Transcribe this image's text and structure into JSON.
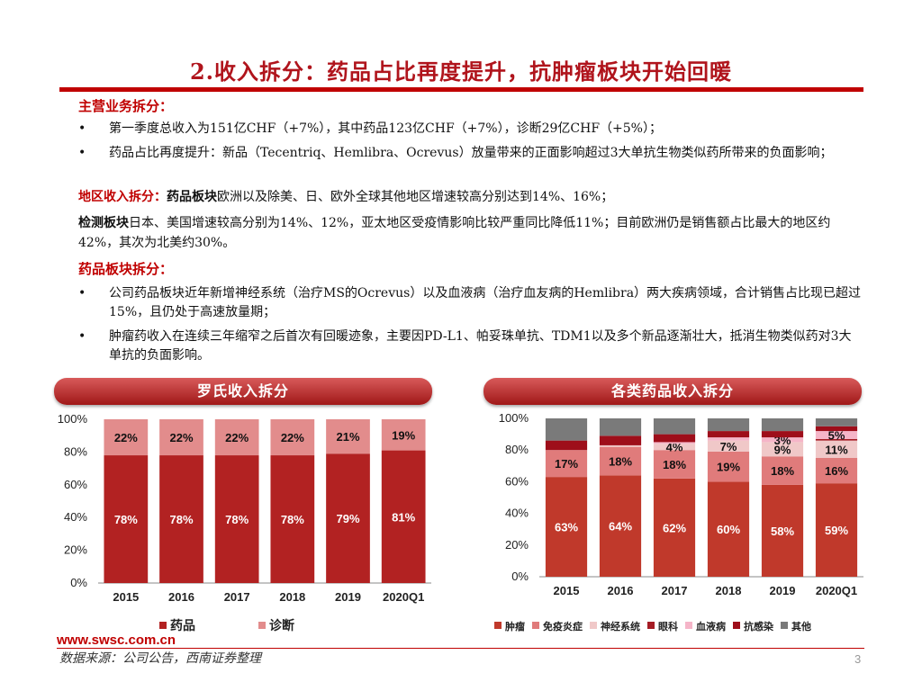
{
  "title": "2.收入拆分：药品占比再度提升，抗肿瘤板块开始回暖",
  "sections": {
    "business_heading": "主营业务拆分：",
    "business_bullets": [
      "第一季度总收入为151亿CHF（+7%），其中药品123亿CHF（+7%），诊断29亿CHF（+5%）；",
      "药品占比再度提升：新品（Tecentriq、Hemlibra、Ocrevus）放量带来的正面影响超过3大单抗生物类似药所带来的负面影响；"
    ],
    "region_heading": "地区收入拆分：",
    "region_pharma_label": "药品板块",
    "region_pharma_text": "欧洲以及除美、日、欧外全球其他地区增速较高分别达到14%、16%；",
    "region_diag_label": "检测板块",
    "region_diag_text": "日本、美国增速较高分别为14%、12%，亚太地区受疫情影响比较严重同比降低11%；目前欧洲仍是销售额占比最大的地区约42%，其次为北美约30%。",
    "pharma_heading": "药品板块拆分：",
    "pharma_bullets": [
      "公司药品板块近年新增神经系统（治疗MS的Ocrevus）以及血液病（治疗血友病的Hemlibra）两大疾病领域，合计销售占比现已超过15%，且仍处于高速放量期；",
      "肿瘤药收入在连续三年缩窄之后首次有回暖迹象，主要因PD-L1、帕妥珠单抗、TDM1以及多个新品逐渐壮大，抵消生物类似药对3大单抗的负面影响。"
    ]
  },
  "banners": {
    "left": "罗氏收入拆分",
    "right": "各类药品收入拆分"
  },
  "chart_data": [
    {
      "type": "bar",
      "stacked": true,
      "title": "罗氏收入拆分",
      "categories": [
        "2015",
        "2016",
        "2017",
        "2018",
        "2019",
        "2020Q1"
      ],
      "yticks": [
        "0%",
        "20%",
        "40%",
        "60%",
        "80%",
        "100%"
      ],
      "ylim": [
        0,
        100
      ],
      "series": [
        {
          "name": "药品",
          "color": "#b22222",
          "values": [
            78,
            78,
            78,
            78,
            79,
            81
          ],
          "labels": [
            "78%",
            "78%",
            "78%",
            "78%",
            "79%",
            "81%"
          ]
        },
        {
          "name": "诊断",
          "color": "#e28c8c",
          "values": [
            22,
            22,
            22,
            22,
            21,
            19
          ],
          "labels": [
            "22%",
            "22%",
            "22%",
            "22%",
            "21%",
            "19%"
          ]
        }
      ],
      "legend": "bottom"
    },
    {
      "type": "bar",
      "stacked": true,
      "title": "各类药品收入拆分",
      "categories": [
        "2015",
        "2016",
        "2017",
        "2018",
        "2019",
        "2020Q1"
      ],
      "yticks": [
        "0%",
        "20%",
        "40%",
        "60%",
        "80%",
        "100%"
      ],
      "ylim": [
        0,
        100
      ],
      "series": [
        {
          "name": "肿瘤",
          "color": "#c0392b",
          "values": [
            63,
            64,
            62,
            60,
            58,
            59
          ],
          "labels": [
            "63%",
            "64%",
            "62%",
            "60%",
            "58%",
            "59%"
          ]
        },
        {
          "name": "免疫炎症",
          "color": "#e07b7b",
          "values": [
            17,
            18,
            18,
            19,
            18,
            16
          ],
          "labels": [
            "17%",
            "18%",
            "18%",
            "19%",
            "18%",
            "16%"
          ]
        },
        {
          "name": "神经系统",
          "color": "#f0c8c8",
          "values": [
            0,
            1,
            4,
            7,
            9,
            11
          ],
          "labels": [
            "",
            "",
            "4%",
            "7%",
            "9%",
            "11%"
          ]
        },
        {
          "name": "眼科",
          "color": "#a51c24",
          "values": [
            0,
            0,
            0,
            0,
            0,
            1
          ],
          "labels": [
            "",
            "",
            "",
            "",
            "",
            ""
          ]
        },
        {
          "name": "血液病",
          "color": "#f5b5c8",
          "values": [
            0,
            0,
            1,
            2,
            3,
            5
          ],
          "labels": [
            "",
            "",
            "",
            "",
            "3%",
            "5%"
          ]
        },
        {
          "name": "抗感染",
          "color": "#9e0e1a",
          "values": [
            6,
            6,
            5,
            4,
            4,
            3
          ],
          "labels": [
            "",
            "",
            "",
            "",
            "",
            ""
          ]
        },
        {
          "name": "其他",
          "color": "#7a7a7a",
          "values": [
            14,
            11,
            10,
            8,
            8,
            5
          ],
          "labels": [
            "",
            "",
            "",
            "",
            "",
            ""
          ]
        }
      ],
      "legend": "bottom"
    }
  ],
  "footer": {
    "url": "www.swsc.com.cn",
    "source": "数据来源：公司公告，西南证券整理",
    "page": "3"
  }
}
